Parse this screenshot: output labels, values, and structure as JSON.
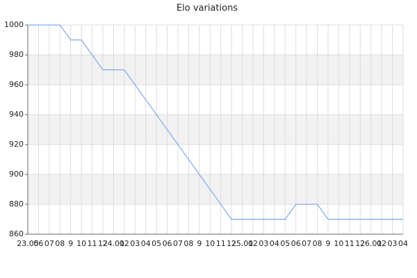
{
  "chart_data": {
    "type": "line",
    "title": "Elo variations",
    "categories": [
      "23.05",
      "06",
      "07",
      "08",
      "9",
      "10",
      "11",
      "12",
      "24.01",
      "02",
      "03",
      "04",
      "05",
      "06",
      "07",
      "08",
      "9",
      "10",
      "11",
      "12",
      "25.01",
      "02",
      "03",
      "04",
      "05",
      "06",
      "07",
      "08",
      "9",
      "10",
      "11",
      "12",
      "26.01",
      "02",
      "03",
      "04"
    ],
    "values": [
      1000,
      1000,
      1000,
      1000,
      990,
      990,
      980,
      970,
      970,
      970,
      960,
      950,
      940,
      930,
      920,
      910,
      900,
      890,
      880,
      870,
      870,
      870,
      870,
      870,
      870,
      880,
      880,
      880,
      870,
      870,
      870,
      870,
      870,
      870,
      870,
      870
    ],
    "color": "#6495ed",
    "ylim": [
      860,
      1000
    ],
    "yticks": [
      860,
      880,
      900,
      920,
      940,
      960,
      980,
      1000
    ],
    "grid": true
  }
}
